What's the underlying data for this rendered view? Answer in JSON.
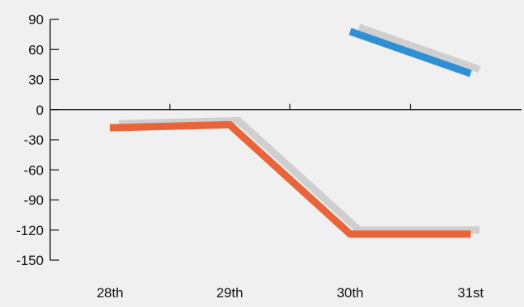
{
  "chart_data": {
    "type": "line",
    "title": "",
    "xlabel": "",
    "ylabel": "",
    "categories": [
      "28th",
      "29th",
      "30th",
      "31st"
    ],
    "ylim": [
      -150,
      90
    ],
    "yticks": [
      90,
      60,
      30,
      0,
      -30,
      -60,
      -90,
      -120,
      -150
    ],
    "grid": false,
    "legend": "none",
    "series": [
      {
        "values": [
          -18,
          -15,
          -124,
          -124
        ],
        "color": "#e8643a",
        "shadow_color": "#cfcfcf"
      },
      {
        "values": [
          null,
          null,
          78,
          36
        ],
        "color": "#2f8fd4",
        "shadow_color": "#cfcfcf"
      }
    ]
  },
  "colors": {
    "background": "#f0f0f0",
    "axis": "#111111"
  }
}
